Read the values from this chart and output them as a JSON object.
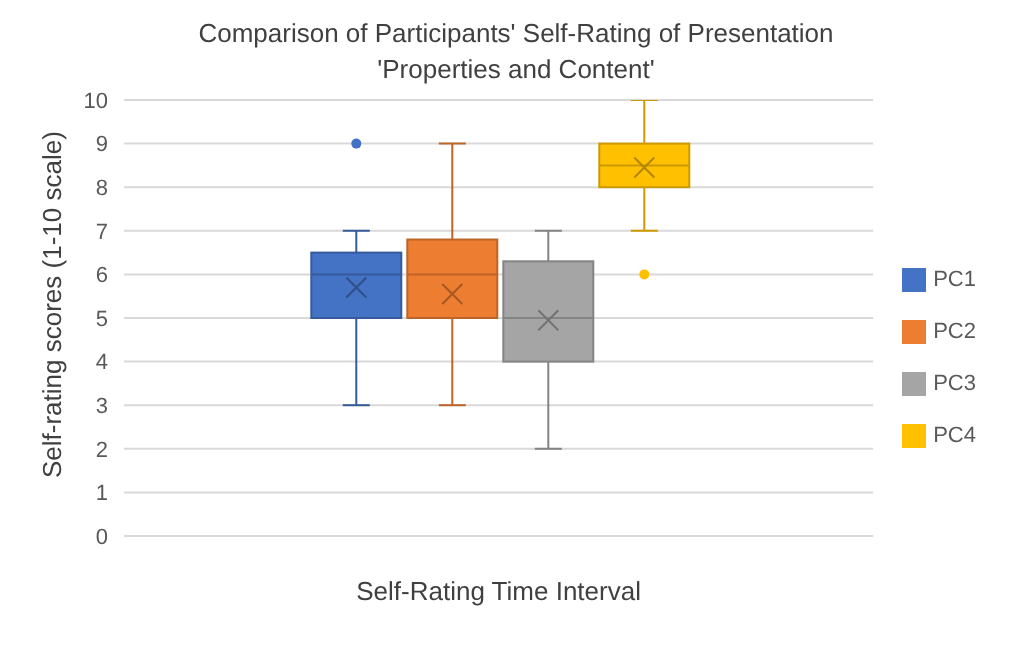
{
  "chart_data": {
    "type": "box",
    "title": "Comparison of Participants' Self-Rating of Presentation 'Properties and Content'",
    "xlabel": "Self-Rating Time Interval",
    "ylabel": "Self-rating scores (1-10 scale)",
    "categories": [
      null
    ],
    "series": [
      {
        "name": "PC1",
        "color": "#4472c4",
        "boxes": [
          {
            "low": 3,
            "q1": 5,
            "median": 6,
            "q3": 6.5,
            "high": 7,
            "mean": 5.7,
            "outliers": [
              9
            ]
          }
        ]
      },
      {
        "name": "PC2",
        "color": "#ed7d31",
        "boxes": [
          {
            "low": 3,
            "q1": 5,
            "median": 6,
            "q3": 6.8,
            "high": 9,
            "mean": 5.55
          }
        ]
      },
      {
        "name": "PC3",
        "color": "#a5a5a5",
        "boxes": [
          {
            "low": 2,
            "q1": 4,
            "median": 5,
            "q3": 6.3,
            "high": 7,
            "mean": 4.95
          }
        ]
      },
      {
        "name": "PC4",
        "color": "#ffc000",
        "boxes": [
          {
            "low": 7,
            "q1": 8,
            "median": 8.5,
            "q3": 9,
            "high": 10,
            "mean": 8.45,
            "outliers": [
              6
            ]
          }
        ]
      }
    ],
    "ylim": [
      0,
      10
    ],
    "yticks": [
      0,
      1,
      2,
      3,
      4,
      5,
      6,
      7,
      8,
      9,
      10
    ],
    "grid": "y",
    "legend": "right"
  }
}
